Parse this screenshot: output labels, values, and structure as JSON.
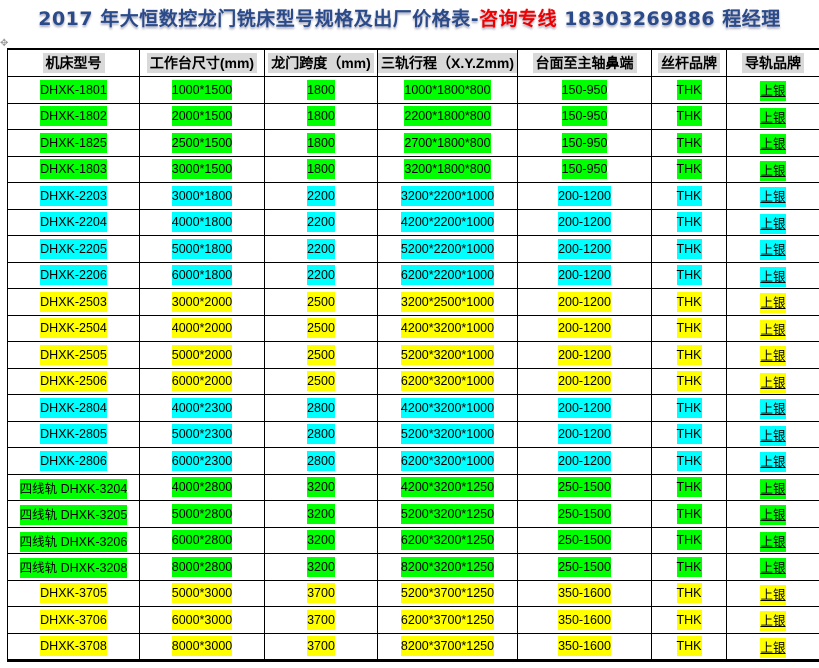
{
  "title": {
    "main": "2017 年大恒数控龙门铣床型号规格及出厂价格表-",
    "hotline": "咨询专线 ",
    "phone": "18303269886 程经理"
  },
  "colors": {
    "green": "#00ff00",
    "cyan": "#00ffff",
    "yellow": "#ffff00"
  },
  "headers": [
    "机床型号",
    "工作台尺寸(mm)",
    "龙门跨度（mm)",
    "三轨行程（X.Y.Zmm)",
    "台面至主轴鼻端",
    "丝杆品牌",
    "导轨品牌"
  ],
  "rows": [
    {
      "h": "green",
      "cells": [
        "DHXK-1801",
        "1000*1500",
        "1800",
        "1000*1800*800",
        "150-950",
        "THK",
        "上银"
      ]
    },
    {
      "h": "green",
      "cells": [
        "DHXK-1802",
        "2000*1500",
        "1800",
        "2200*1800*800",
        "150-950",
        "THK",
        "上银"
      ]
    },
    {
      "h": "green",
      "cells": [
        "DHXK-1825",
        "2500*1500",
        "1800",
        "2700*1800*800",
        "150-950",
        "THK",
        "上银"
      ]
    },
    {
      "h": "green",
      "cells": [
        "DHXK-1803",
        "3000*1500",
        "1800",
        "3200*1800*800",
        "150-950",
        "THK",
        "上银"
      ]
    },
    {
      "h": "cyan",
      "cells": [
        "DHXK-2203",
        "3000*1800",
        "2200",
        "3200*2200*1000",
        "200-1200",
        "THK",
        "上银"
      ]
    },
    {
      "h": "cyan",
      "cells": [
        "DHXK-2204",
        "4000*1800",
        "2200",
        "4200*2200*1000",
        "200-1200",
        "THK",
        "上银"
      ]
    },
    {
      "h": "cyan",
      "cells": [
        "DHXK-2205",
        "5000*1800",
        "2200",
        "5200*2200*1000",
        "200-1200",
        "THK",
        "上银"
      ]
    },
    {
      "h": "cyan",
      "cells": [
        "DHXK-2206",
        "6000*1800",
        "2200",
        "6200*2200*1000",
        "200-1200",
        "THK",
        "上银"
      ]
    },
    {
      "h": "yellow",
      "cells": [
        "DHXK-2503",
        "3000*2000",
        "2500",
        "3200*2500*1000",
        "200-1200",
        "THK",
        "上银"
      ]
    },
    {
      "h": "yellow",
      "cells": [
        "DHXK-2504",
        "4000*2000",
        "2500",
        "4200*3200*1000",
        "200-1200",
        "THK",
        "上银"
      ]
    },
    {
      "h": "yellow",
      "cells": [
        "DHXK-2505",
        "5000*2000",
        "2500",
        "5200*3200*1000",
        "200-1200",
        "THK",
        "上银"
      ]
    },
    {
      "h": "yellow",
      "cells": [
        "DHXK-2506",
        "6000*2000",
        "2500",
        "6200*3200*1000",
        "200-1200",
        "THK",
        "上银"
      ]
    },
    {
      "h": "cyan",
      "cells": [
        "DHXK-2804",
        "4000*2300",
        "2800",
        "4200*3200*1000",
        "200-1200",
        "THK",
        "上银"
      ]
    },
    {
      "h": "cyan",
      "cells": [
        "DHXK-2805",
        "5000*2300",
        "2800",
        "5200*3200*1000",
        "200-1200",
        "THK",
        "上银"
      ]
    },
    {
      "h": "cyan",
      "cells": [
        "DHXK-2806",
        "6000*2300",
        "2800",
        "6200*3200*1000",
        "200-1200",
        "THK",
        "上银"
      ]
    },
    {
      "h": "green",
      "cells": [
        "四线轨 DHXK-3204",
        "4000*2800",
        "3200",
        "4200*3200*1250",
        "250-1500",
        "THK",
        "上银"
      ]
    },
    {
      "h": "green",
      "cells": [
        "四线轨 DHXK-3205",
        "5000*2800",
        "3200",
        "5200*3200*1250",
        "250-1500",
        "THK",
        "上银"
      ]
    },
    {
      "h": "green",
      "cells": [
        "四线轨 DHXK-3206",
        "6000*2800",
        "3200",
        "6200*3200*1250",
        "250-1500",
        "THK",
        "上银"
      ]
    },
    {
      "h": "green",
      "cells": [
        "四线轨 DHXK-3208",
        "8000*2800",
        "3200",
        "8200*3200*1250",
        "250-1500",
        "THK",
        "上银"
      ]
    },
    {
      "h": "yellow",
      "cells": [
        "DHXK-3705",
        "5000*3000",
        "3700",
        "5200*3700*1250",
        "350-1600",
        "THK",
        "上银"
      ]
    },
    {
      "h": "yellow",
      "cells": [
        "DHXK-3706",
        "6000*3000",
        "3700",
        "6200*3700*1250",
        "350-1600",
        "THK",
        "上银"
      ]
    },
    {
      "h": "yellow",
      "cells": [
        "DHXK-3708",
        "8000*3000",
        "3700",
        "8200*3700*1250",
        "350-1600",
        "THK",
        "上银"
      ]
    }
  ]
}
